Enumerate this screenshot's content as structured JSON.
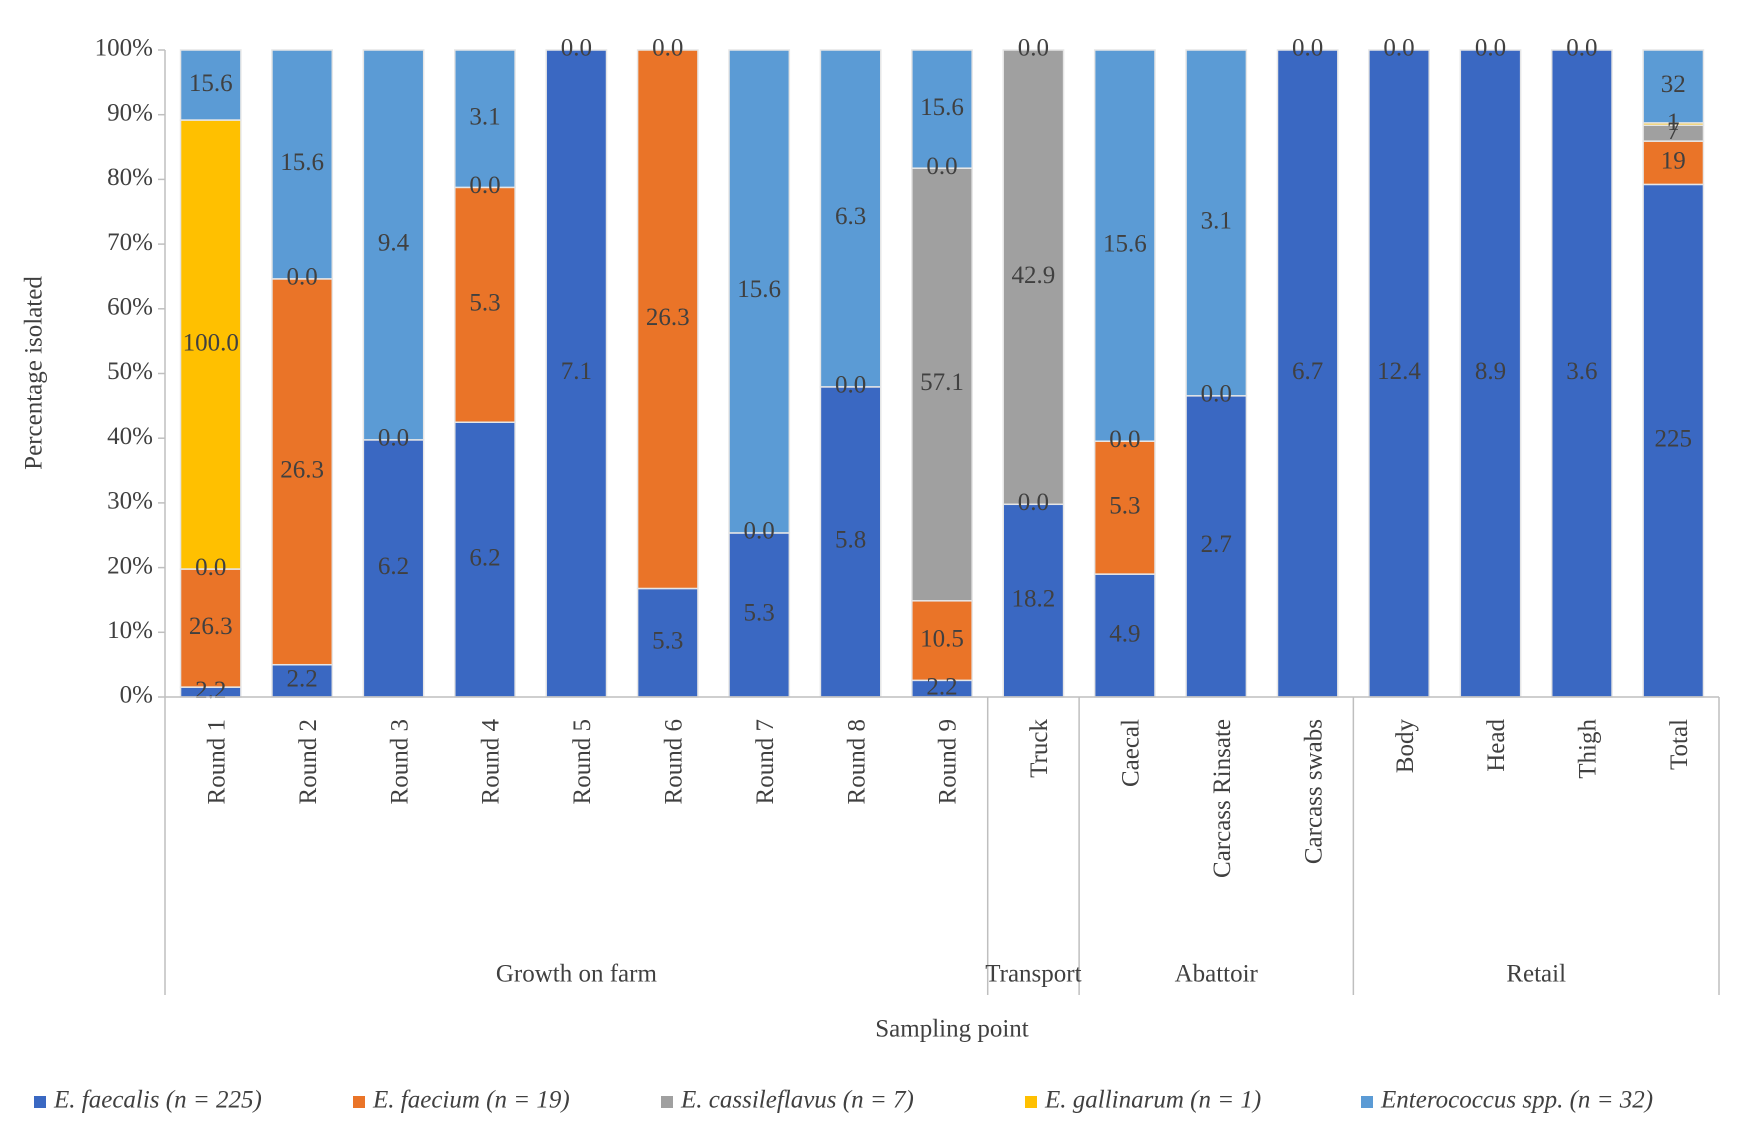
{
  "chart_data": {
    "type": "stacked-percent-bar",
    "ylabel": "Percentage isolated",
    "xlabel": "Sampling point",
    "ylim": [
      0,
      100
    ],
    "yticks": [
      {
        "value": 0,
        "label": "0%"
      },
      {
        "value": 10,
        "label": "10%"
      },
      {
        "value": 20,
        "label": "20%"
      },
      {
        "value": 30,
        "label": "30%"
      },
      {
        "value": 40,
        "label": "40%"
      },
      {
        "value": 50,
        "label": "50%"
      },
      {
        "value": 60,
        "label": "60%"
      },
      {
        "value": 70,
        "label": "70%"
      },
      {
        "value": 80,
        "label": "80%"
      },
      {
        "value": 90,
        "label": "90%"
      },
      {
        "value": 100,
        "label": "100%"
      }
    ],
    "groups": [
      {
        "name": "Growth on farm",
        "categories": [
          "Round 1",
          "Round 2",
          "Round 3",
          "Round 4",
          "Round 5",
          "Round 6",
          "Round 7",
          "Round 8",
          "Round 9"
        ]
      },
      {
        "name": "Transport",
        "categories": [
          "Truck"
        ]
      },
      {
        "name": "Abattoir",
        "categories": [
          "Caecal",
          "Carcass Rinsate",
          "Carcass swabs"
        ]
      },
      {
        "name": "Retail",
        "categories": [
          "Body",
          "Head",
          "Thigh",
          "Total"
        ]
      }
    ],
    "legend": "bottom",
    "series": [
      {
        "name": "E. faecalis (n = 225)",
        "color": "#3a68c2",
        "values": [
          2.2,
          2.2,
          6.2,
          6.2,
          7.1,
          5.3,
          5.3,
          5.8,
          2.2,
          18.2,
          4.9,
          2.7,
          6.7,
          12.4,
          8.9,
          3.6,
          225
        ],
        "value_labels": [
          "2.2",
          "2.2",
          "6.2",
          "6.2",
          "7.1",
          "5.3",
          "5.3",
          "5.8",
          "2.2",
          "18.2",
          "4.9",
          "2.7",
          "6.7",
          "12.4",
          "8.9",
          "3.6",
          "225"
        ]
      },
      {
        "name": "E. faecium (n = 19)",
        "color": "#ea7428",
        "values": [
          26.3,
          26.3,
          0,
          5.3,
          null,
          26.3,
          0,
          0,
          10.5,
          0,
          5.3,
          0,
          null,
          null,
          null,
          null,
          19
        ],
        "value_labels": [
          "26.3",
          "26.3",
          "0.0",
          "5.3",
          null,
          "26.3",
          "0.0",
          "0.0",
          "10.5",
          "0.0",
          "5.3",
          "0.0",
          null,
          null,
          null,
          null,
          "19"
        ]
      },
      {
        "name": "E. cassileflavus (n = 7)",
        "color": "#a0a0a0",
        "values": [
          0,
          0,
          null,
          0,
          null,
          null,
          null,
          null,
          57.1,
          42.9,
          0,
          null,
          null,
          null,
          null,
          null,
          7
        ],
        "value_labels": [
          "0.0",
          "0.0",
          null,
          "0.0",
          null,
          null,
          null,
          null,
          "57.1",
          "42.9",
          "0.0",
          null,
          null,
          null,
          null,
          null,
          "7"
        ]
      },
      {
        "name": "E. gallinarum (n = 1)",
        "color": "#ffc000",
        "values": [
          100,
          null,
          null,
          null,
          null,
          null,
          null,
          null,
          0,
          null,
          null,
          null,
          null,
          null,
          null,
          null,
          1
        ],
        "value_labels": [
          "100.0",
          null,
          null,
          null,
          null,
          null,
          null,
          null,
          "0.0",
          null,
          null,
          null,
          null,
          null,
          null,
          null,
          "1"
        ]
      },
      {
        "name": "Enterococcus spp. (n = 32)",
        "color": "#5b9bd5",
        "values": [
          15.6,
          15.6,
          9.4,
          3.1,
          0,
          0,
          15.6,
          6.3,
          15.6,
          0,
          15.6,
          3.1,
          0,
          0,
          0,
          0,
          32
        ],
        "value_labels": [
          "15.6",
          "15.6",
          "9.4",
          "3.1",
          "0.0",
          "0.0",
          "15.6",
          "6.3",
          "15.6",
          "0.0",
          "15.6",
          "3.1",
          "0.0",
          "0.0",
          "0.0",
          "0.0",
          "32"
        ]
      }
    ]
  }
}
